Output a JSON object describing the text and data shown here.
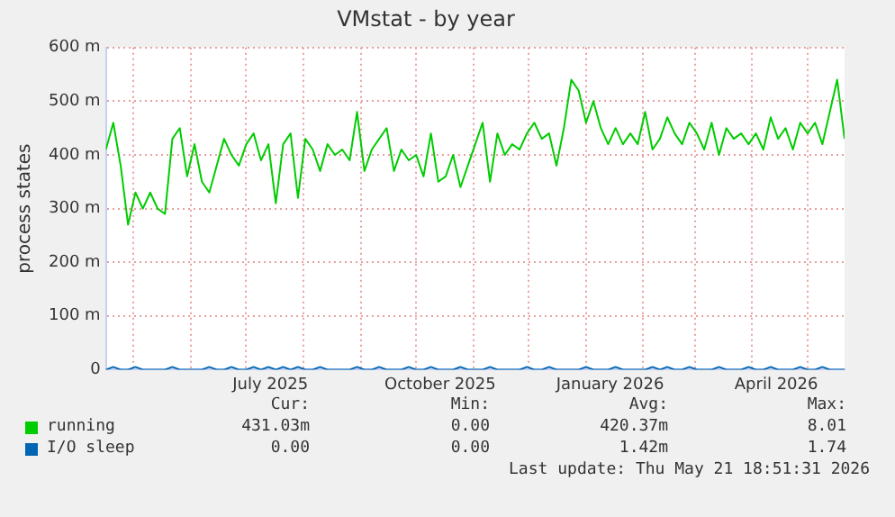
{
  "chart_data": {
    "type": "line",
    "title": "VMstat - by year",
    "ylabel": "process states",
    "grid": true,
    "legend": "bottom",
    "marker": "none",
    "line_style": "solid",
    "x": [
      "2025-04-16",
      "2025-04-20",
      "2025-04-24",
      "2025-04-28",
      "2025-05-02",
      "2025-05-06",
      "2025-05-10",
      "2025-05-14",
      "2025-05-18",
      "2025-05-22",
      "2025-05-26",
      "2025-05-30",
      "2025-06-03",
      "2025-06-07",
      "2025-06-11",
      "2025-06-15",
      "2025-06-19",
      "2025-06-23",
      "2025-06-27",
      "2025-07-01",
      "2025-07-05",
      "2025-07-09",
      "2025-07-13",
      "2025-07-17",
      "2025-07-21",
      "2025-07-25",
      "2025-07-29",
      "2025-08-02",
      "2025-08-06",
      "2025-08-10",
      "2025-08-14",
      "2025-08-18",
      "2025-08-22",
      "2025-08-26",
      "2025-08-30",
      "2025-09-03",
      "2025-09-07",
      "2025-09-11",
      "2025-09-15",
      "2025-09-19",
      "2025-09-23",
      "2025-09-27",
      "2025-10-01",
      "2025-10-05",
      "2025-10-09",
      "2025-10-13",
      "2025-10-17",
      "2025-10-21",
      "2025-10-25",
      "2025-10-29",
      "2025-11-02",
      "2025-11-06",
      "2025-11-10",
      "2025-11-14",
      "2025-11-18",
      "2025-11-22",
      "2025-11-26",
      "2025-11-30",
      "2025-12-04",
      "2025-12-08",
      "2025-12-12",
      "2025-12-16",
      "2025-12-20",
      "2025-12-24",
      "2025-12-28",
      "2026-01-01",
      "2026-01-05",
      "2026-01-09",
      "2026-01-13",
      "2026-01-17",
      "2026-01-21",
      "2026-01-25",
      "2026-01-29",
      "2026-02-02",
      "2026-02-06",
      "2026-02-10",
      "2026-02-14",
      "2026-02-18",
      "2026-02-22",
      "2026-02-26",
      "2026-03-02",
      "2026-03-06",
      "2026-03-10",
      "2026-03-14",
      "2026-03-18",
      "2026-03-22",
      "2026-03-26",
      "2026-03-30",
      "2026-04-03",
      "2026-04-07",
      "2026-04-11",
      "2026-04-15",
      "2026-04-19",
      "2026-04-23",
      "2026-04-27",
      "2026-05-01",
      "2026-05-05",
      "2026-05-09",
      "2026-05-13",
      "2026-05-17",
      "2026-05-21"
    ],
    "series": [
      {
        "name": "running",
        "color": "#00cc00",
        "values": [
          410,
          460,
          380,
          270,
          330,
          300,
          330,
          300,
          290,
          430,
          450,
          360,
          420,
          350,
          330,
          380,
          430,
          400,
          380,
          420,
          440,
          390,
          420,
          310,
          420,
          440,
          320,
          430,
          410,
          370,
          420,
          400,
          410,
          390,
          480,
          370,
          410,
          430,
          450,
          370,
          410,
          390,
          400,
          360,
          440,
          350,
          360,
          400,
          340,
          380,
          420,
          460,
          350,
          440,
          400,
          420,
          410,
          440,
          460,
          430,
          440,
          380,
          450,
          540,
          520,
          460,
          500,
          450,
          420,
          450,
          420,
          440,
          420,
          480,
          410,
          430,
          470,
          440,
          420,
          460,
          440,
          410,
          460,
          400,
          450,
          430,
          440,
          420,
          440,
          410,
          470,
          430,
          450,
          410,
          460,
          440,
          460,
          420,
          480,
          540,
          430
        ]
      },
      {
        "name": "I/O sleep",
        "color": "#0066b3",
        "values": [
          0,
          5,
          0,
          0,
          5,
          0,
          0,
          0,
          0,
          5,
          0,
          0,
          0,
          0,
          5,
          0,
          0,
          5,
          0,
          0,
          5,
          0,
          5,
          0,
          5,
          0,
          5,
          0,
          0,
          5,
          0,
          0,
          0,
          0,
          5,
          0,
          0,
          5,
          0,
          0,
          0,
          5,
          0,
          0,
          5,
          0,
          0,
          0,
          5,
          0,
          0,
          0,
          5,
          0,
          0,
          0,
          0,
          5,
          0,
          0,
          5,
          0,
          0,
          0,
          0,
          5,
          0,
          0,
          0,
          5,
          0,
          0,
          0,
          0,
          5,
          0,
          5,
          0,
          0,
          5,
          0,
          0,
          0,
          5,
          0,
          0,
          0,
          5,
          0,
          0,
          5,
          0,
          0,
          0,
          5,
          0,
          0,
          5,
          0,
          0,
          0
        ]
      }
    ],
    "xlim": [
      "2025-04-16",
      "2026-05-21"
    ],
    "xticks": [
      {
        "value": "2025-05-01",
        "label": null
      },
      {
        "value": "2025-06-01",
        "label": null
      },
      {
        "value": "2025-07-01",
        "label": null
      },
      {
        "value": "2025-07-14",
        "label": "July 2025"
      },
      {
        "value": "2025-08-01",
        "label": null
      },
      {
        "value": "2025-09-01",
        "label": null
      },
      {
        "value": "2025-10-01",
        "label": null
      },
      {
        "value": "2025-10-14",
        "label": "October 2025"
      },
      {
        "value": "2025-11-01",
        "label": null
      },
      {
        "value": "2025-12-01",
        "label": null
      },
      {
        "value": "2026-01-01",
        "label": null
      },
      {
        "value": "2026-01-14",
        "label": "January 2026"
      },
      {
        "value": "2026-02-01",
        "label": null
      },
      {
        "value": "2026-03-01",
        "label": null
      },
      {
        "value": "2026-04-01",
        "label": null
      },
      {
        "value": "2026-04-14",
        "label": "April 2026"
      },
      {
        "value": "2026-05-01",
        "label": null
      }
    ],
    "ylim": [
      0,
      600
    ],
    "yticks": [
      0,
      {
        "value": 100,
        "label": "100 m"
      },
      {
        "value": 200,
        "label": "200 m"
      },
      {
        "value": 300,
        "label": "300 m"
      },
      {
        "value": 400,
        "label": "400 m"
      },
      {
        "value": 500,
        "label": "500 m"
      },
      {
        "value": 600,
        "label": "600 m"
      }
    ],
    "annotations": [
      "Cur:",
      "Min:",
      "Avg:",
      "Max:",
      "431.03m",
      "0.00",
      "420.37m",
      "8.01",
      "0.00",
      "0.00",
      "1.42m",
      "1.74",
      "Last update: Thu May 21 18:51:31 2026"
    ]
  }
}
